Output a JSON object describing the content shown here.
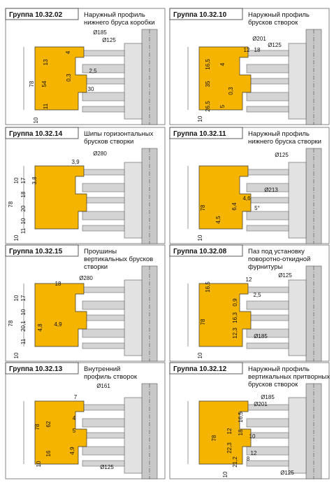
{
  "panels": [
    {
      "group": "Группа 10.32.02",
      "description": [
        "Наружный профиль",
        "нижнего бруса коробки"
      ],
      "dims": [
        "Ø185",
        "Ø125",
        "13",
        "4",
        "0,3",
        "2,5",
        "78",
        "54",
        "30",
        "11",
        "10"
      ]
    },
    {
      "group": "Группа 10.32.10",
      "description": [
        "Наружный профиль",
        "брусков створок"
      ],
      "dims": [
        "Ø201",
        "12",
        "18",
        "Ø125",
        "16,5",
        "4",
        "35",
        "0,3",
        "26,5",
        "5",
        "10"
      ]
    },
    {
      "group": "Группа 10.32.14",
      "description": [
        "Шипы горизонтальных",
        "брусков створки"
      ],
      "dims": [
        "3,9",
        "Ø280",
        "10",
        "17",
        "3,8",
        "78",
        "18",
        "20",
        "10",
        "11",
        "10"
      ]
    },
    {
      "group": "Группа 10.32.11",
      "description": [
        "Наружный профиль",
        "нижнего бруска створки"
      ],
      "dims": [
        "Ø125",
        "Ø213",
        "78",
        "4,6",
        "6,4",
        "4,5",
        "5°",
        "10"
      ]
    },
    {
      "group": "Группа 10.32.15",
      "description": [
        "Проушины",
        "вертикальных брусков",
        "створки"
      ],
      "dims": [
        "18",
        "Ø280",
        "10",
        "17",
        "10",
        "20,1",
        "11",
        "10",
        "78",
        "4,8",
        "4,9"
      ]
    },
    {
      "group": "Группа 10.32.08",
      "description": [
        "Паз под установку",
        "поворотно-откидной",
        "фурнитуры"
      ],
      "dims": [
        "12",
        "Ø125",
        "16,5",
        "0,9",
        "2,5",
        "16,3",
        "12,3",
        "78",
        "Ø185",
        "10"
      ]
    },
    {
      "group": "Группа 10.32.13",
      "description": [
        "Внутренний",
        "профиль створок"
      ],
      "dims": [
        "Ø161",
        "7",
        "4",
        "62",
        "78",
        "5",
        "4,9",
        "16",
        "10",
        "Ø125"
      ]
    },
    {
      "group": "Группа 10.32.12",
      "description": [
        "Наружный профиль",
        "вертикальных притворных",
        "брусков створок"
      ],
      "dims": [
        "Ø185",
        "Ø201",
        "16,5",
        "18",
        "12",
        "22,3",
        "10",
        "78",
        "21,2",
        "8",
        "12",
        "10",
        "Ø125"
      ]
    }
  ]
}
